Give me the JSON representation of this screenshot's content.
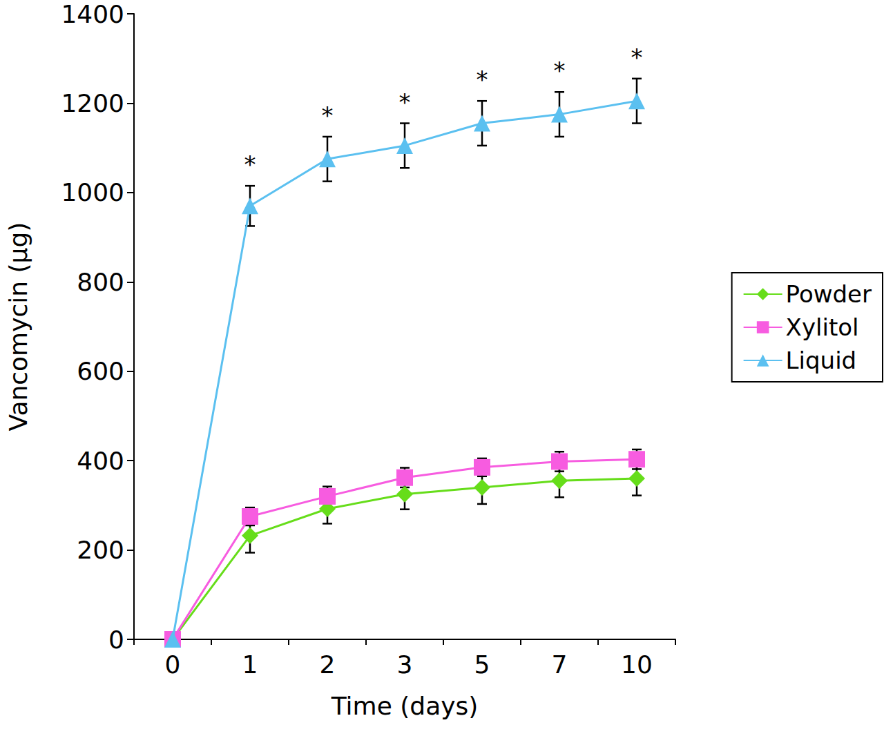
{
  "chart_data": {
    "type": "line",
    "x_label": "Time (days)",
    "y_label": "Vancomycin (µg)",
    "categories": [
      "0",
      "1",
      "2",
      "3",
      "5",
      "7",
      "10"
    ],
    "ylim": [
      0,
      1400
    ],
    "yticks": [
      0,
      200,
      400,
      600,
      800,
      1000,
      1200,
      1400
    ],
    "grid": false,
    "legend": "right",
    "series": [
      {
        "name": "Powder",
        "color": "#66dd1a",
        "marker": "diamond",
        "values": [
          0,
          232,
          292,
          325,
          340,
          355,
          360
        ],
        "errors": [
          0,
          38,
          33,
          34,
          37,
          37,
          38
        ]
      },
      {
        "name": "Xylitol",
        "color": "#f75ce0",
        "marker": "square",
        "values": [
          0,
          275,
          320,
          362,
          385,
          398,
          403
        ],
        "errors": [
          0,
          20,
          22,
          22,
          20,
          22,
          22
        ]
      },
      {
        "name": "Liquid",
        "color": "#5bc0f0",
        "marker": "triangle",
        "values": [
          0,
          970,
          1075,
          1105,
          1155,
          1175,
          1205
        ],
        "errors": [
          0,
          45,
          50,
          50,
          50,
          50,
          50
        ],
        "annotations": [
          null,
          "*",
          "*",
          "*",
          "*",
          "*",
          "*"
        ]
      }
    ]
  }
}
